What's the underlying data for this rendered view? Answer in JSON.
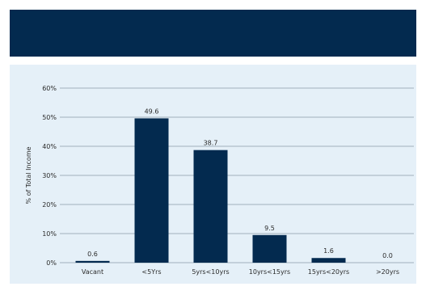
{
  "colors": {
    "header_band": "#032a4f",
    "panel_background": "#e5f0f8",
    "bar": "#032a4f",
    "gridline": "#8a9aa8"
  },
  "chart_data": {
    "type": "bar",
    "title": "",
    "xlabel": "",
    "ylabel": "% of Total Income",
    "categories": [
      "Vacant",
      "<5Yrs",
      "5yrs<10yrs",
      "10yrs<15yrs",
      "15yrs<20yrs",
      ">20yrs"
    ],
    "values": [
      0.6,
      49.6,
      38.7,
      9.5,
      1.6,
      0.0
    ],
    "data_labels": [
      "0.6",
      "49.6",
      "38.7",
      "9.5",
      "1.6",
      "0.0"
    ],
    "ylim": [
      0,
      60
    ],
    "yticks": [
      0,
      10,
      20,
      30,
      40,
      50,
      60
    ],
    "ytick_labels": [
      "0%",
      "10%",
      "20%",
      "30%",
      "40%",
      "50%",
      "60%"
    ],
    "grid": true,
    "legend": "none"
  }
}
